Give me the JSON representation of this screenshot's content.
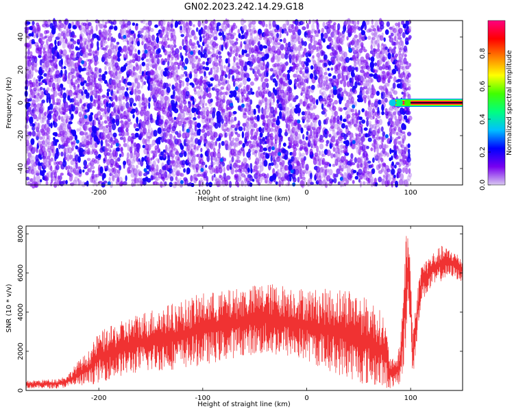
{
  "title": "GN02.2023.242.14.29.G18",
  "chart_data": [
    {
      "type": "heatmap",
      "panel": "spectrogram",
      "xlabel": "Height of straight line (km)",
      "ylabel": "Frequency (Hz)",
      "xlim": [
        -270,
        150
      ],
      "ylim": [
        -50,
        50
      ],
      "xticks": [
        -200,
        -100,
        0,
        100
      ],
      "yticks": [
        -40,
        -20,
        0,
        20,
        40
      ],
      "colorbar": {
        "label": "Normalized spectral amplitude",
        "range": [
          0,
          1
        ],
        "ticks": [
          0.0,
          0.2,
          0.4,
          0.6,
          0.8
        ],
        "tick_labels": [
          "0.0",
          "0.2",
          "0.4",
          "0.6",
          "0.8"
        ],
        "colormap": [
          "#d8c8f0",
          "#7800f0",
          "#0000ff",
          "#00c0ff",
          "#00ff80",
          "#40ff00",
          "#ffff00",
          "#ff8000",
          "#ff0000",
          "#ff0080"
        ]
      },
      "features": {
        "noise_region_x": [
          -270,
          100
        ],
        "noise_amplitude_range": [
          0.05,
          0.25
        ],
        "diagonal_stripe_spacing_km": 20,
        "strong_signal": {
          "x_start": 80,
          "x_end": 150,
          "frequency_hz": 0,
          "amplitude": 1.0
        }
      }
    },
    {
      "type": "line",
      "panel": "snr",
      "xlabel": "Height of straight line (km)",
      "ylabel": "SNR (10 * v/v)",
      "xlim": [
        -270,
        150
      ],
      "ylim": [
        0,
        8400
      ],
      "xticks": [
        -200,
        -100,
        0,
        100
      ],
      "yticks": [
        0,
        2000,
        4000,
        6000,
        8000
      ],
      "color": "#f03232",
      "envelope": {
        "x": [
          -270,
          -240,
          -230,
          -220,
          -210,
          -200,
          -180,
          -160,
          -140,
          -120,
          -100,
          -80,
          -60,
          -40,
          -20,
          0,
          20,
          40,
          55,
          65,
          75,
          80,
          85,
          90,
          95,
          98,
          100,
          102,
          105,
          110,
          120,
          130,
          140,
          150
        ],
        "upper": [
          500,
          600,
          800,
          1500,
          2000,
          3000,
          3500,
          4000,
          4300,
          4600,
          5000,
          5100,
          5300,
          5500,
          5400,
          5200,
          5200,
          5300,
          4800,
          4500,
          3800,
          1800,
          1500,
          2500,
          7800,
          8300,
          6500,
          3000,
          4500,
          6500,
          7000,
          7400,
          7200,
          6800
        ],
        "lower": [
          100,
          100,
          150,
          200,
          250,
          400,
          700,
          900,
          1000,
          1100,
          1300,
          1500,
          1800,
          1800,
          1700,
          1500,
          1000,
          600,
          300,
          200,
          100,
          100,
          200,
          300,
          1500,
          4500,
          3000,
          500,
          2000,
          4500,
          5200,
          5600,
          5800,
          5500
        ]
      }
    }
  ]
}
